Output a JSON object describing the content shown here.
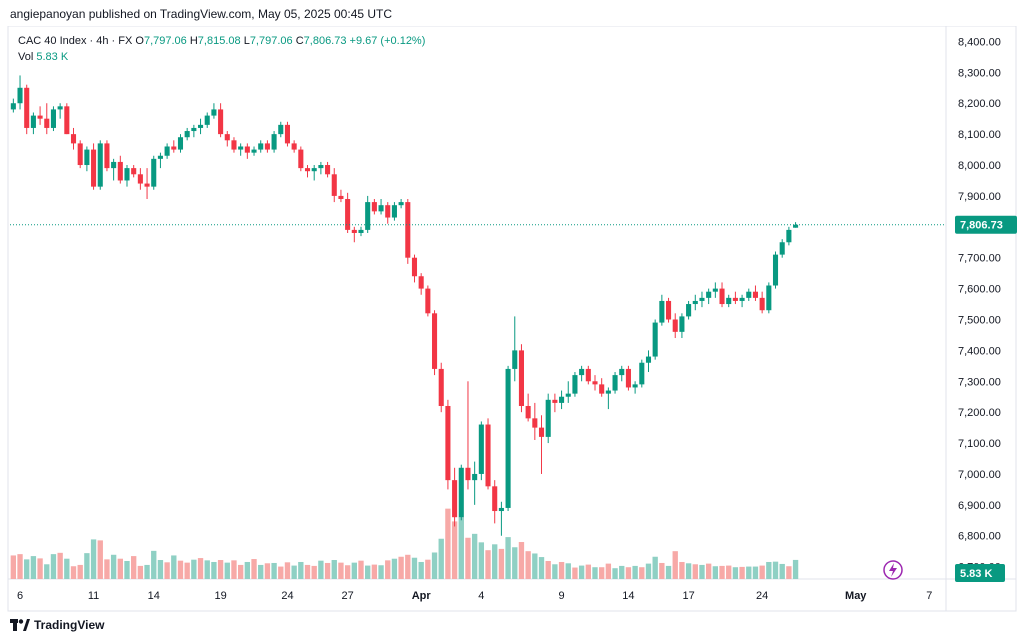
{
  "header": {
    "published": "angiepanoyan published on TradingView.com, May 05, 2025 00:45 UTC"
  },
  "legend": {
    "symbol": "CAC 40 Index · 4h · FX",
    "o_label": "O",
    "o_value": "7,797.06",
    "h_label": "H",
    "h_value": "7,815.08",
    "l_label": "L",
    "l_value": "7,797.06",
    "c_label": "C",
    "c_value": "7,806.73",
    "change": "+9.67 (+0.12%)",
    "vol_label": "Vol",
    "vol_value": "5.83 K"
  },
  "colors": {
    "up": "#089981",
    "down": "#f23645",
    "up_vol": "#8fd0c4",
    "down_vol": "#f7a9a7",
    "price_line": "#089981"
  },
  "price_tag": "7,806.73",
  "vol_tag": "5.83 K",
  "footer": {
    "brand": "TradingView"
  },
  "icons": {
    "alert": "lightning-icon",
    "logo": "tradingview-logo-icon"
  },
  "chart_data": {
    "type": "candlestick",
    "title": "CAC 40 Index · 4h · FX",
    "y_ticks": [
      "8,400.00",
      "8,300.00",
      "8,200.00",
      "8,100.00",
      "8,000.00",
      "7,900.00",
      "7,800.00",
      "7,700.00",
      "7,600.00",
      "7,500.00",
      "7,400.00",
      "7,300.00",
      "7,200.00",
      "7,100.00",
      "7,000.00",
      "6,900.00",
      "6,800.00",
      "6,700.00"
    ],
    "y_tick_values": [
      8400,
      8300,
      8200,
      8100,
      8000,
      7900,
      7800,
      7700,
      7600,
      7500,
      7400,
      7300,
      7200,
      7100,
      7000,
      6900,
      6800,
      6700
    ],
    "ylim": [
      6660,
      8450
    ],
    "x_ticks": [
      "6",
      "11",
      "14",
      "19",
      "24",
      "27",
      "Apr",
      "4",
      "9",
      "14",
      "17",
      "24",
      "May",
      "7"
    ],
    "x_tick_index": [
      1,
      12,
      21,
      31,
      41,
      50,
      61,
      70,
      82,
      92,
      101,
      112,
      126,
      137
    ],
    "x_count": 140,
    "last_price": 7806.73,
    "ohlc": [
      [
        8180,
        8215,
        8170,
        8200
      ],
      [
        8200,
        8290,
        8180,
        8250
      ],
      [
        8250,
        8260,
        8100,
        8120
      ],
      [
        8120,
        8170,
        8100,
        8160
      ],
      [
        8160,
        8190,
        8130,
        8150
      ],
      [
        8150,
        8200,
        8100,
        8120
      ],
      [
        8120,
        8190,
        8110,
        8180
      ],
      [
        8180,
        8200,
        8150,
        8190
      ],
      [
        8190,
        8200,
        8100,
        8100
      ],
      [
        8100,
        8120,
        8050,
        8070
      ],
      [
        8070,
        8080,
        7990,
        8000
      ],
      [
        8000,
        8060,
        7980,
        8050
      ],
      [
        8050,
        8070,
        7920,
        7930
      ],
      [
        7930,
        8080,
        7920,
        8070
      ],
      [
        8070,
        8080,
        7980,
        7990
      ],
      [
        7990,
        8020,
        7950,
        8010
      ],
      [
        8010,
        8030,
        7940,
        7950
      ],
      [
        7950,
        8000,
        7930,
        7990
      ],
      [
        7990,
        8000,
        7960,
        7970
      ],
      [
        7970,
        7990,
        7920,
        7940
      ],
      [
        7940,
        7990,
        7890,
        7930
      ],
      [
        7930,
        8030,
        7920,
        8020
      ],
      [
        8020,
        8040,
        7990,
        8030
      ],
      [
        8030,
        8070,
        8020,
        8060
      ],
      [
        8060,
        8080,
        8040,
        8050
      ],
      [
        8050,
        8100,
        8040,
        8090
      ],
      [
        8090,
        8120,
        8080,
        8110
      ],
      [
        8110,
        8130,
        8090,
        8120
      ],
      [
        8120,
        8150,
        8100,
        8130
      ],
      [
        8130,
        8170,
        8120,
        8160
      ],
      [
        8160,
        8200,
        8150,
        8180
      ],
      [
        8180,
        8200,
        8090,
        8100
      ],
      [
        8100,
        8110,
        8060,
        8080
      ],
      [
        8080,
        8090,
        8040,
        8050
      ],
      [
        8050,
        8070,
        8030,
        8060
      ],
      [
        8060,
        8070,
        8020,
        8040
      ],
      [
        8040,
        8060,
        8030,
        8050
      ],
      [
        8050,
        8080,
        8040,
        8070
      ],
      [
        8070,
        8080,
        8040,
        8050
      ],
      [
        8050,
        8110,
        8040,
        8100
      ],
      [
        8100,
        8140,
        8090,
        8130
      ],
      [
        8130,
        8140,
        8060,
        8070
      ],
      [
        8070,
        8080,
        8040,
        8050
      ],
      [
        8050,
        8060,
        7980,
        7990
      ],
      [
        7990,
        8000,
        7960,
        7980
      ],
      [
        7980,
        8000,
        7950,
        7990
      ],
      [
        7990,
        8010,
        7970,
        8000
      ],
      [
        8000,
        8010,
        7960,
        7970
      ],
      [
        7970,
        7990,
        7880,
        7900
      ],
      [
        7900,
        7920,
        7880,
        7890
      ],
      [
        7890,
        7910,
        7780,
        7790
      ],
      [
        7790,
        7800,
        7750,
        7780
      ],
      [
        7780,
        7800,
        7770,
        7790
      ],
      [
        7790,
        7900,
        7780,
        7880
      ],
      [
        7880,
        7890,
        7840,
        7850
      ],
      [
        7850,
        7890,
        7840,
        7870
      ],
      [
        7870,
        7880,
        7810,
        7830
      ],
      [
        7830,
        7880,
        7820,
        7870
      ],
      [
        7870,
        7890,
        7860,
        7880
      ],
      [
        7880,
        7890,
        7680,
        7700
      ],
      [
        7700,
        7710,
        7620,
        7640
      ],
      [
        7640,
        7650,
        7580,
        7600
      ],
      [
        7600,
        7610,
        7510,
        7520
      ],
      [
        7520,
        7530,
        7320,
        7340
      ],
      [
        7340,
        7360,
        7200,
        7220
      ],
      [
        7220,
        7240,
        6950,
        6980
      ],
      [
        6980,
        7020,
        6830,
        6860
      ],
      [
        6860,
        7030,
        6850,
        7020
      ],
      [
        7020,
        7300,
        6950,
        6980
      ],
      [
        6980,
        7040,
        6900,
        7000
      ],
      [
        7000,
        7170,
        6980,
        7160
      ],
      [
        7160,
        7180,
        6950,
        6960
      ],
      [
        6960,
        6980,
        6840,
        6880
      ],
      [
        6880,
        6910,
        6800,
        6890
      ],
      [
        6890,
        7350,
        6880,
        7340
      ],
      [
        7340,
        7510,
        7300,
        7400
      ],
      [
        7400,
        7420,
        7200,
        7220
      ],
      [
        7220,
        7260,
        7170,
        7180
      ],
      [
        7180,
        7230,
        7110,
        7150
      ],
      [
        7150,
        7190,
        7000,
        7120
      ],
      [
        7120,
        7260,
        7100,
        7240
      ],
      [
        7240,
        7260,
        7200,
        7230
      ],
      [
        7230,
        7270,
        7210,
        7250
      ],
      [
        7250,
        7300,
        7230,
        7260
      ],
      [
        7260,
        7330,
        7250,
        7320
      ],
      [
        7320,
        7350,
        7300,
        7340
      ],
      [
        7340,
        7350,
        7290,
        7300
      ],
      [
        7300,
        7320,
        7270,
        7290
      ],
      [
        7290,
        7310,
        7250,
        7260
      ],
      [
        7260,
        7280,
        7210,
        7270
      ],
      [
        7270,
        7330,
        7260,
        7320
      ],
      [
        7320,
        7350,
        7300,
        7340
      ],
      [
        7340,
        7350,
        7270,
        7280
      ],
      [
        7280,
        7300,
        7260,
        7290
      ],
      [
        7290,
        7370,
        7280,
        7360
      ],
      [
        7360,
        7400,
        7330,
        7380
      ],
      [
        7380,
        7500,
        7370,
        7490
      ],
      [
        7490,
        7580,
        7480,
        7560
      ],
      [
        7560,
        7570,
        7490,
        7500
      ],
      [
        7500,
        7520,
        7440,
        7460
      ],
      [
        7460,
        7520,
        7440,
        7510
      ],
      [
        7510,
        7560,
        7500,
        7550
      ],
      [
        7550,
        7580,
        7530,
        7560
      ],
      [
        7560,
        7590,
        7540,
        7570
      ],
      [
        7570,
        7600,
        7550,
        7590
      ],
      [
        7590,
        7620,
        7570,
        7600
      ],
      [
        7600,
        7620,
        7540,
        7550
      ],
      [
        7550,
        7580,
        7540,
        7570
      ],
      [
        7570,
        7590,
        7550,
        7560
      ],
      [
        7560,
        7580,
        7540,
        7570
      ],
      [
        7570,
        7600,
        7560,
        7590
      ],
      [
        7590,
        7610,
        7560,
        7570
      ],
      [
        7570,
        7590,
        7520,
        7530
      ],
      [
        7530,
        7620,
        7520,
        7610
      ],
      [
        7610,
        7720,
        7600,
        7710
      ],
      [
        7710,
        7760,
        7700,
        7750
      ],
      [
        7750,
        7800,
        7740,
        7790
      ],
      [
        7797.06,
        7815.08,
        7797.06,
        7806.73
      ]
    ],
    "volume": [
      [
        7.2,
        0
      ],
      [
        7.6,
        0
      ],
      [
        6.0,
        1
      ],
      [
        7.0,
        1
      ],
      [
        6.3,
        0
      ],
      [
        4.5,
        1
      ],
      [
        7.6,
        1
      ],
      [
        8.0,
        0
      ],
      [
        6.2,
        1
      ],
      [
        3.9,
        0
      ],
      [
        4.3,
        0
      ],
      [
        7.9,
        1
      ],
      [
        12.1,
        1
      ],
      [
        11.8,
        0
      ],
      [
        6.0,
        0
      ],
      [
        7.4,
        1
      ],
      [
        6.2,
        0
      ],
      [
        5.5,
        1
      ],
      [
        7.0,
        0
      ],
      [
        4.0,
        0
      ],
      [
        4.3,
        1
      ],
      [
        8.6,
        1
      ],
      [
        5.8,
        1
      ],
      [
        5.1,
        0
      ],
      [
        7.2,
        1
      ],
      [
        5.6,
        0
      ],
      [
        5.0,
        0
      ],
      [
        5.9,
        1
      ],
      [
        6.4,
        0
      ],
      [
        5.7,
        1
      ],
      [
        5.2,
        1
      ],
      [
        5.8,
        0
      ],
      [
        5.0,
        1
      ],
      [
        5.7,
        0
      ],
      [
        4.3,
        0
      ],
      [
        5.2,
        1
      ],
      [
        6.1,
        0
      ],
      [
        4.3,
        1
      ],
      [
        4.8,
        0
      ],
      [
        4.9,
        1
      ],
      [
        3.8,
        0
      ],
      [
        5.1,
        0
      ],
      [
        4.1,
        1
      ],
      [
        5.2,
        1
      ],
      [
        4.3,
        0
      ],
      [
        4.0,
        0
      ],
      [
        5.6,
        1
      ],
      [
        4.9,
        0
      ],
      [
        5.8,
        1
      ],
      [
        5.0,
        0
      ],
      [
        4.2,
        0
      ],
      [
        5.0,
        1
      ],
      [
        5.6,
        0
      ],
      [
        4.1,
        1
      ],
      [
        4.4,
        0
      ],
      [
        4.2,
        1
      ],
      [
        5.7,
        0
      ],
      [
        6.2,
        1
      ],
      [
        6.8,
        0
      ],
      [
        7.4,
        0
      ],
      [
        6.5,
        1
      ],
      [
        5.2,
        1
      ],
      [
        5.9,
        0
      ],
      [
        8.1,
        1
      ],
      [
        12.3,
        1
      ],
      [
        21.5,
        0
      ],
      [
        17.6,
        0
      ],
      [
        18.9,
        1
      ],
      [
        12.6,
        0
      ],
      [
        13.8,
        1
      ],
      [
        11.2,
        1
      ],
      [
        8.8,
        0
      ],
      [
        10.6,
        1
      ],
      [
        9.2,
        0
      ],
      [
        12.8,
        1
      ],
      [
        9.7,
        1
      ],
      [
        11.3,
        0
      ],
      [
        8.5,
        0
      ],
      [
        7.8,
        1
      ],
      [
        6.7,
        1
      ],
      [
        5.5,
        0
      ],
      [
        4.5,
        1
      ],
      [
        5.2,
        0
      ],
      [
        4.8,
        1
      ],
      [
        3.5,
        0
      ],
      [
        4.1,
        1
      ],
      [
        4.4,
        0
      ],
      [
        3.6,
        1
      ],
      [
        3.6,
        0
      ],
      [
        4.7,
        0
      ],
      [
        3.3,
        1
      ],
      [
        4.0,
        1
      ],
      [
        3.6,
        0
      ],
      [
        4.0,
        1
      ],
      [
        3.6,
        0
      ],
      [
        4.7,
        1
      ],
      [
        6.8,
        1
      ],
      [
        4.9,
        0
      ],
      [
        4.0,
        1
      ],
      [
        8.5,
        0
      ],
      [
        5.2,
        0
      ],
      [
        4.8,
        1
      ],
      [
        4.5,
        0
      ],
      [
        4.3,
        1
      ],
      [
        4.7,
        0
      ],
      [
        3.9,
        1
      ],
      [
        4.0,
        0
      ],
      [
        4.1,
        0
      ],
      [
        3.6,
        1
      ],
      [
        3.7,
        0
      ],
      [
        3.8,
        1
      ],
      [
        3.8,
        1
      ],
      [
        4.1,
        0
      ],
      [
        5.2,
        1
      ],
      [
        5.3,
        1
      ],
      [
        4.6,
        1
      ],
      [
        3.9,
        0
      ],
      [
        5.83,
        1
      ]
    ]
  }
}
